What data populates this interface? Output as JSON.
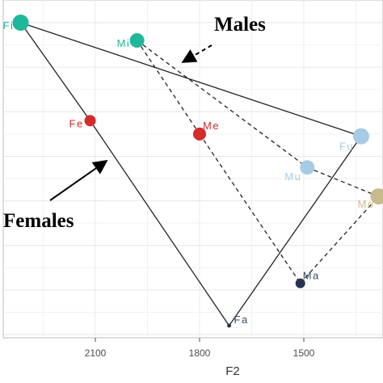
{
  "chart_data": {
    "type": "scatter",
    "xlabel": "F2",
    "ylabel": "",
    "x_reversed": true,
    "xlim": [
      2200,
      1390
    ],
    "x_ticks": [
      2100,
      1800,
      1500
    ],
    "ylim": [
      1,
      8
    ],
    "grid": true,
    "points": [
      {
        "label": "Fi",
        "x": 2315,
        "y": 8.0,
        "color": "#1fb79b",
        "size": 10
      },
      {
        "label": "Mi",
        "x": 1980,
        "y": 7.6,
        "color": "#1fb79b",
        "size": 9
      },
      {
        "label": "Fe",
        "x": 2115,
        "y": 5.8,
        "color": "#d42b2b",
        "size": 7
      },
      {
        "label": "Me",
        "x": 1800,
        "y": 5.5,
        "color": "#d42b2b",
        "size": 8
      },
      {
        "label": "Fu",
        "x": 1335,
        "y": 5.45,
        "color": "#a8cbe5",
        "size": 10
      },
      {
        "label": "Mu",
        "x": 1490,
        "y": 4.75,
        "color": "#a8cbe5",
        "size": 9
      },
      {
        "label": "Mo",
        "x": 1285,
        "y": 4.1,
        "color": "#c8ba8c",
        "size": 10
      },
      {
        "label": "Ma",
        "x": 1510,
        "y": 2.15,
        "color": "#26344e",
        "size": 6
      },
      {
        "label": "Fa",
        "x": 1715,
        "y": 1.2,
        "color": "#26344e",
        "size": 2.5
      }
    ],
    "series": [
      {
        "name": "Females",
        "line": "solid",
        "points": [
          "Fi",
          "Fe",
          "Fa"
        ],
        "closing_segments": [
          "Fi-Fu",
          "Fa-Fu"
        ]
      },
      {
        "name": "Males",
        "line": "dashed",
        "points": [
          "Mi",
          "Me",
          "Ma"
        ],
        "closing_segments": [
          "Mi-Mu",
          "Mu-Mo",
          "Ma-Mo"
        ]
      }
    ],
    "annotations": [
      {
        "text": "Males",
        "points_to": "Males"
      },
      {
        "text": "Females",
        "points_to": "Females"
      }
    ]
  }
}
